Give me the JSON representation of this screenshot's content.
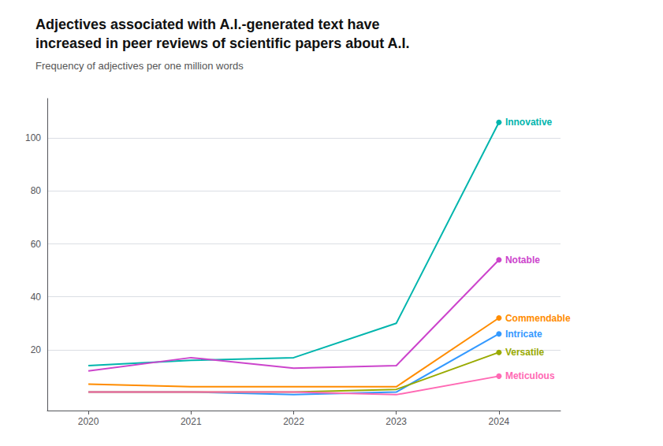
{
  "chart_data": {
    "type": "line",
    "title": "Adjectives associated with A.I.-generated text have\nincreased in peer reviews of scientific papers about A.I.",
    "subtitle": "Frequency of adjectives per one million words",
    "x": [
      2020,
      2021,
      2022,
      2023,
      2024
    ],
    "series": [
      {
        "name": "Innovative",
        "color": "#00B5AD",
        "values": [
          14,
          16,
          17,
          30,
          106
        ]
      },
      {
        "name": "Notable",
        "color": "#CC44CC",
        "values": [
          12,
          17,
          13,
          14,
          54
        ]
      },
      {
        "name": "Commendable",
        "color": "#FF8C00",
        "values": [
          7,
          6,
          6,
          6,
          32
        ]
      },
      {
        "name": "Intricate",
        "color": "#3399FF",
        "values": [
          4,
          4,
          3,
          4,
          26
        ]
      },
      {
        "name": "Versatile",
        "color": "#99AA00",
        "values": [
          4,
          4,
          4,
          5,
          19
        ]
      },
      {
        "name": "Meticulous",
        "color": "#FF69B4",
        "values": [
          4,
          4,
          4,
          3,
          10
        ]
      }
    ],
    "xlim": [
      2019.6,
      2024.6
    ],
    "xticks": [
      2020,
      2021,
      2022,
      2023,
      2024
    ],
    "ylim": [
      -3,
      115
    ],
    "yticks": [
      20,
      40,
      60,
      80,
      100
    ],
    "grid": true
  }
}
